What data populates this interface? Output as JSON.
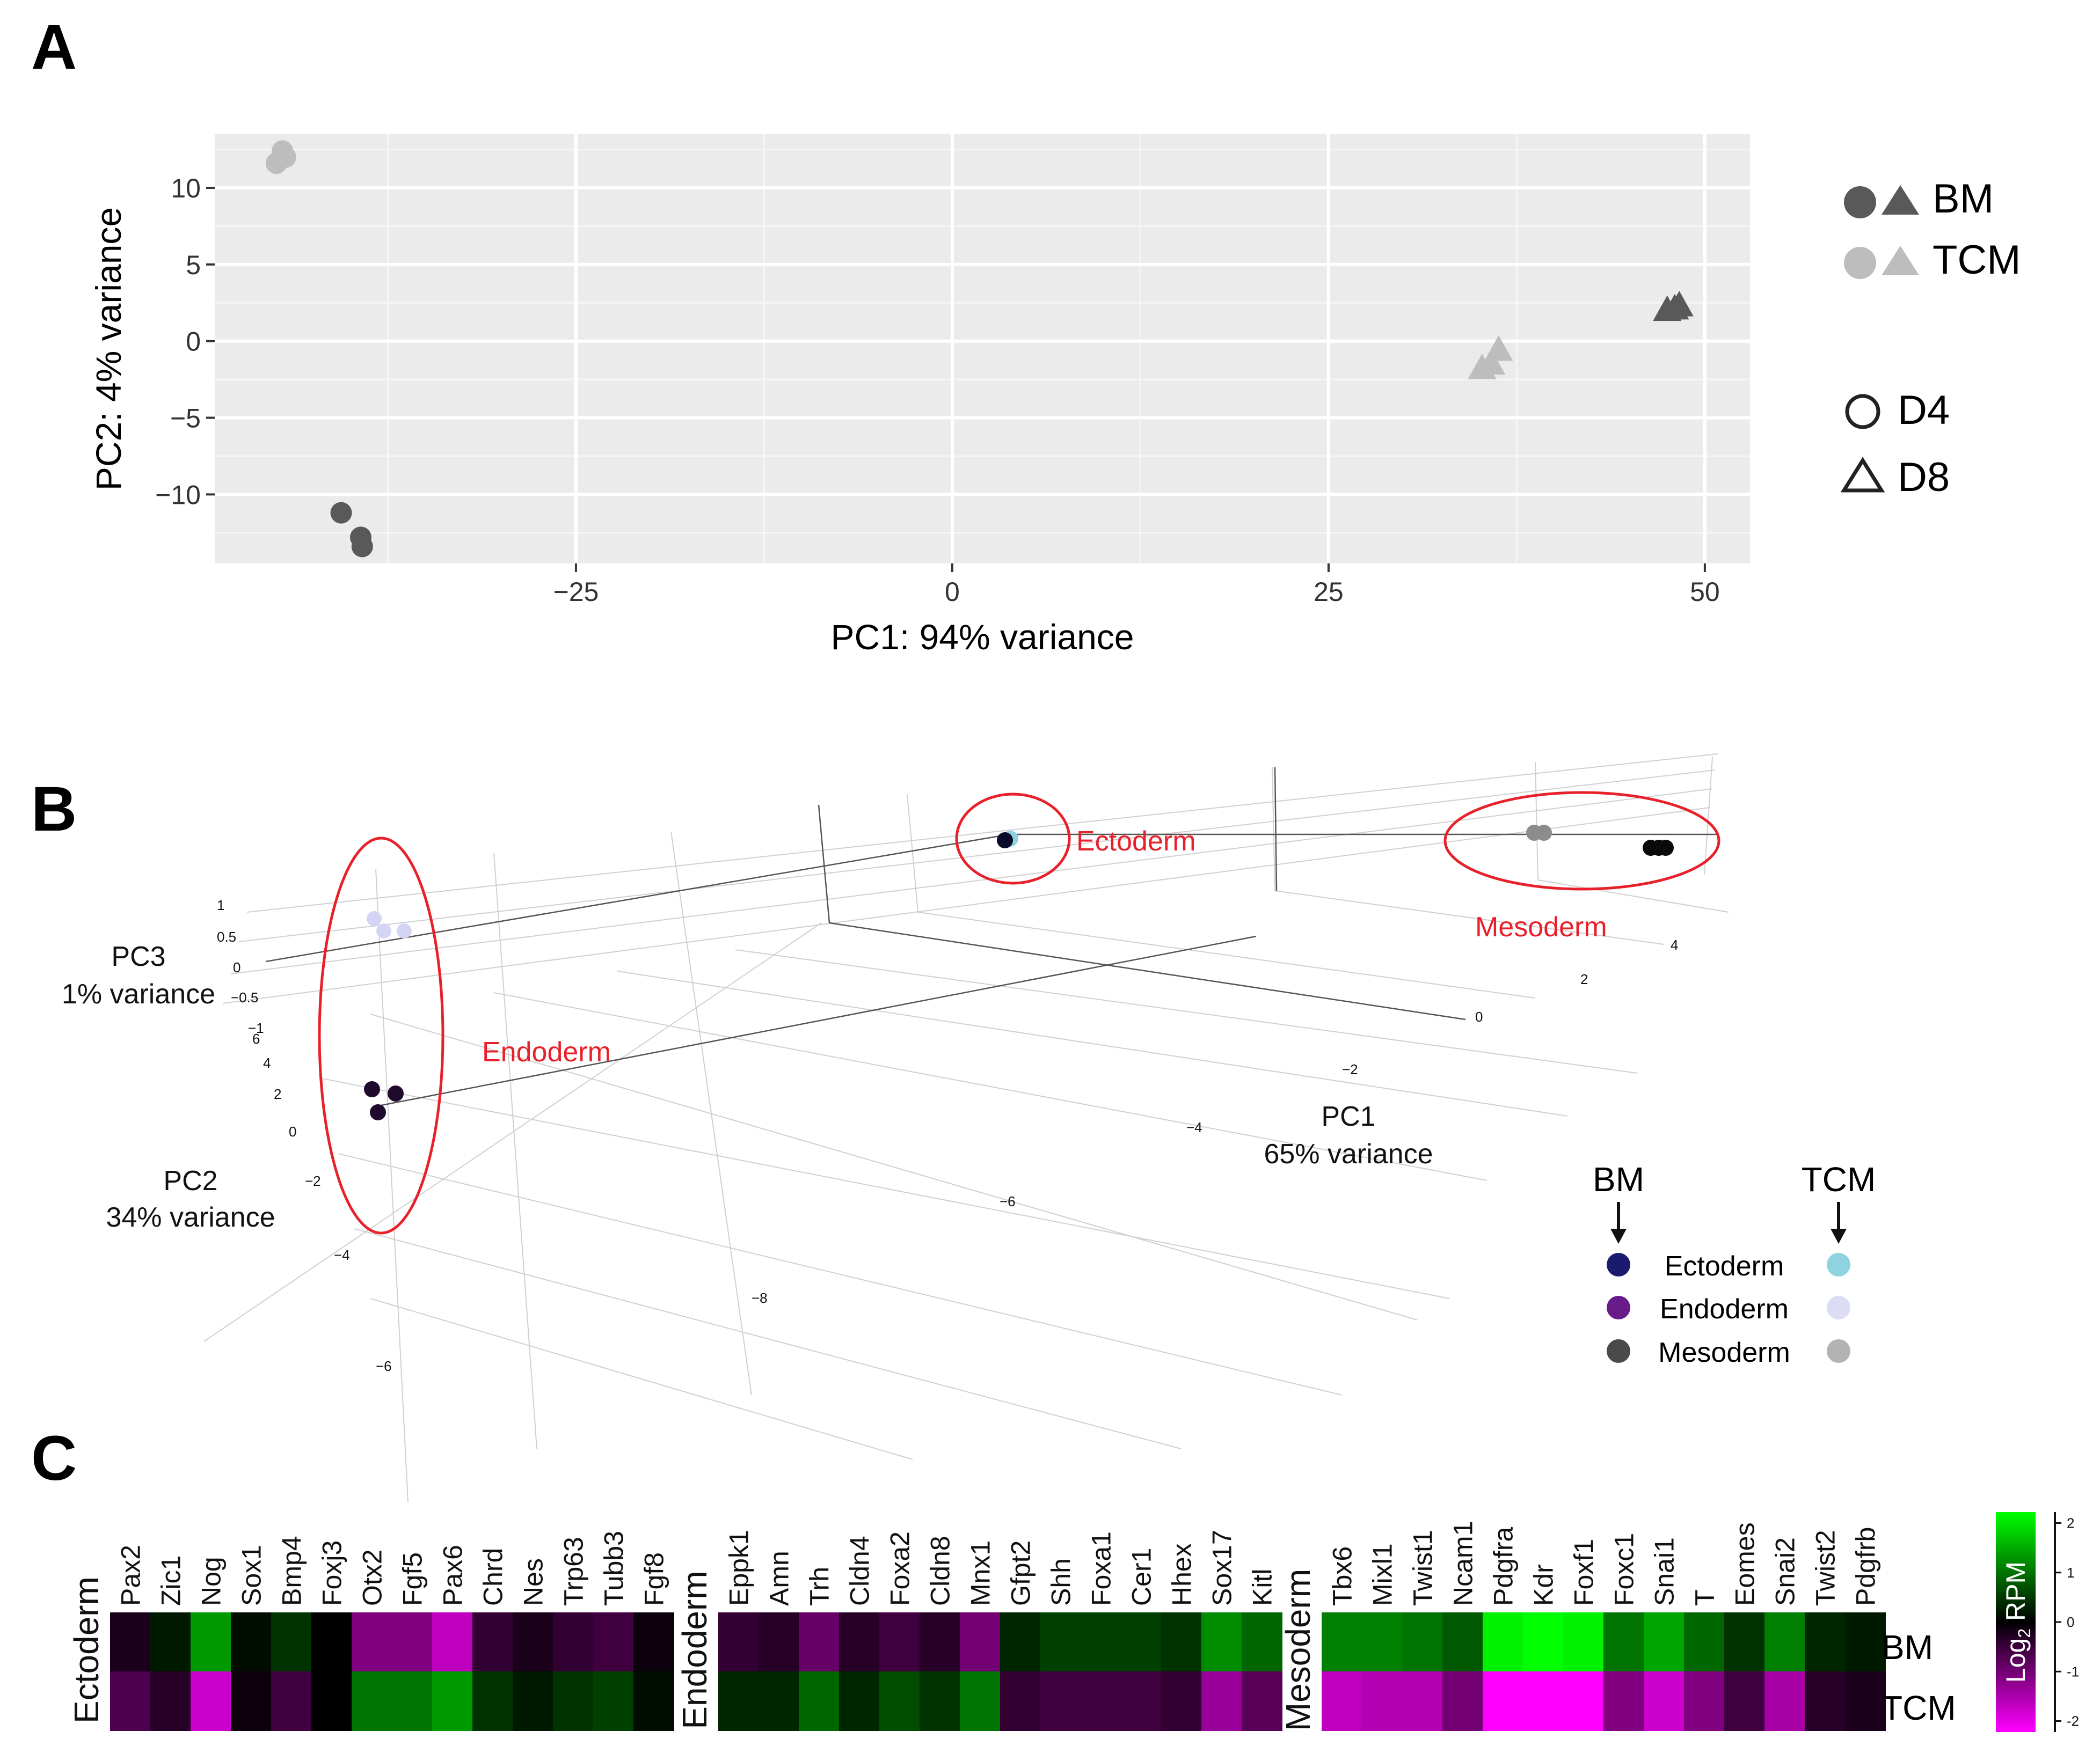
{
  "panel_labels": [
    "A",
    "B",
    "C"
  ],
  "chart_data": [
    {
      "panel": "A",
      "type": "scatter",
      "title": "",
      "xlabel": "PC1: 94% variance",
      "ylabel": "PC2: 4% variance",
      "xlim": [
        -49,
        53
      ],
      "ylim": [
        -14.5,
        13.5
      ],
      "xticks": [
        "−25",
        "0",
        "25",
        "50"
      ],
      "xtick_values": [
        -25,
        0,
        25,
        50
      ],
      "yticks": [
        "10",
        "5",
        "0",
        "−5",
        "−10"
      ],
      "ytick_values": [
        10,
        5,
        0,
        -5,
        -10
      ],
      "grid": true,
      "legend_position": "right",
      "legend_color": [
        {
          "label": "BM",
          "color": "#595959"
        },
        {
          "label": "TCM",
          "color": "#bdbdbd"
        }
      ],
      "legend_shape": [
        {
          "label": "D4",
          "shape": "circle"
        },
        {
          "label": "D8",
          "shape": "triangle"
        }
      ],
      "series": [
        {
          "group": "TCM",
          "day": "D4",
          "color": "#bdbdbd",
          "shape": "circle",
          "points": [
            [
              -44.5,
              12.4
            ],
            [
              -44.3,
              12.0
            ],
            [
              -44.9,
              11.6
            ]
          ]
        },
        {
          "group": "BM",
          "day": "D4",
          "color": "#595959",
          "shape": "circle",
          "points": [
            [
              -40.6,
              -11.2
            ],
            [
              -39.3,
              -12.8
            ],
            [
              -39.2,
              -13.4
            ]
          ]
        },
        {
          "group": "TCM",
          "day": "D8",
          "color": "#bdbdbd",
          "shape": "triangle",
          "points": [
            [
              35.2,
              -1.8
            ],
            [
              35.8,
              -1.5
            ],
            [
              36.3,
              -0.6
            ]
          ]
        },
        {
          "group": "BM",
          "day": "D8",
          "color": "#595959",
          "shape": "triangle",
          "points": [
            [
              47.5,
              2.0
            ],
            [
              48.3,
              2.3
            ],
            [
              48.0,
              2.1
            ]
          ]
        }
      ]
    },
    {
      "panel": "B",
      "type": "scatter",
      "title": "",
      "axes": [
        {
          "label": "PC1",
          "sublabel": "65% variance",
          "ticks": [
            "4",
            "2",
            "0",
            "−2",
            "−4",
            "−6",
            "−8"
          ]
        },
        {
          "label": "PC2",
          "sublabel": "34% variance",
          "ticks": [
            "6",
            "4",
            "2",
            "0",
            "−2",
            "−4",
            "−6"
          ]
        },
        {
          "label": "PC3",
          "sublabel": "1% variance",
          "ticks": [
            "1",
            "0.5",
            "0",
            "−0.5",
            "−1"
          ]
        }
      ],
      "clusters": [
        {
          "label": "Ectoderm",
          "label_color": "#e8202a"
        },
        {
          "label": "Endoderm",
          "label_color": "#e8202a"
        },
        {
          "label": "Mesoderm",
          "label_color": "#e8202a"
        }
      ],
      "legend": {
        "headers": [
          "BM",
          "TCM"
        ],
        "rows": [
          {
            "label": "Ectoderm",
            "bm_color": "#1a1a6e",
            "tcm_color": "#8fd3e0"
          },
          {
            "label": "Endoderm",
            "bm_color": "#6a1b8a",
            "tcm_color": "#dcdcf5"
          },
          {
            "label": "Mesoderm",
            "bm_color": "#4a4a4a",
            "tcm_color": "#b3b3b3"
          }
        ]
      },
      "groups": [
        {
          "cluster": "Ectoderm",
          "source": "BM",
          "color": "#0a0a2a",
          "n": 1
        },
        {
          "cluster": "Ectoderm",
          "source": "TCM",
          "color": "#8fd3e0",
          "n": 1
        },
        {
          "cluster": "Endoderm",
          "source": "BM",
          "color": "#1f0a2e",
          "n": 3
        },
        {
          "cluster": "Endoderm",
          "source": "TCM",
          "color": "#d4d4f4",
          "n": 3
        },
        {
          "cluster": "Mesoderm",
          "source": "BM",
          "color": "#0a0a0a",
          "n": 3
        },
        {
          "cluster": "Mesoderm",
          "source": "TCM",
          "color": "#8c8c8c",
          "n": 2
        }
      ]
    },
    {
      "panel": "C",
      "type": "heatmap",
      "title": "",
      "rows": [
        "BM",
        "TCM"
      ],
      "colorbar": {
        "label": "Log2 RPM",
        "ticks": [
          "2",
          "1",
          "0",
          "-1",
          "-2"
        ],
        "range": [
          -2,
          2
        ],
        "low_color": "#ff00ff",
        "mid_color": "#000000",
        "high_color": "#00ff00"
      },
      "groups": [
        {
          "name": "Ectoderm",
          "genes": [
            "Pax2",
            "Zic1",
            "Nog",
            "Sox1",
            "Bmp4",
            "Foxj3",
            "Otx2",
            "Fgf5",
            "Pax6",
            "Chrd",
            "Nes",
            "Trp63",
            "Tubb3",
            "Fgf8"
          ],
          "BM": [
            -0.2,
            0.2,
            1.2,
            0.1,
            0.4,
            0.0,
            -1.0,
            -1.0,
            -1.5,
            -0.4,
            -0.2,
            -0.4,
            -0.5,
            -0.1
          ],
          "TCM": [
            -0.6,
            -0.3,
            -1.6,
            -0.1,
            -0.5,
            0.0,
            0.9,
            0.9,
            1.2,
            0.4,
            0.2,
            0.4,
            0.5,
            0.1
          ]
        },
        {
          "name": "Endoderm",
          "genes": [
            "Eppk1",
            "Amn",
            "Trh",
            "Cldn4",
            "Foxa2",
            "Cldn8",
            "Mnx1",
            "Gfpt2",
            "Shh",
            "Foxa1",
            "Cer1",
            "Hhex",
            "Sox17",
            "Kitl"
          ],
          "BM": [
            -0.4,
            -0.3,
            -0.8,
            -0.3,
            -0.5,
            -0.3,
            -0.9,
            0.3,
            0.5,
            0.5,
            0.5,
            0.4,
            1.1,
            0.8
          ],
          "TCM": [
            0.3,
            0.3,
            0.8,
            0.3,
            0.6,
            0.4,
            0.9,
            -0.4,
            -0.5,
            -0.5,
            -0.5,
            -0.4,
            -1.2,
            -0.7
          ]
        },
        {
          "name": "Mesoderm",
          "genes": [
            "Tbx6",
            "Mixl1",
            "Twist1",
            "Ncam1",
            "Pdgfra",
            "Kdr",
            "Foxf1",
            "Foxc1",
            "Snai1",
            "T",
            "Eomes",
            "Snai2",
            "Twist2",
            "Pdgfrb"
          ],
          "BM": [
            1.0,
            1.0,
            0.9,
            0.7,
            1.9,
            2.0,
            1.9,
            0.9,
            1.3,
            0.8,
            0.4,
            1.0,
            0.3,
            0.2
          ],
          "TCM": [
            -1.5,
            -1.4,
            -1.4,
            -0.9,
            -2.0,
            -2.0,
            -2.0,
            -1.0,
            -1.6,
            -1.0,
            -0.5,
            -1.3,
            -0.3,
            -0.2
          ]
        }
      ]
    }
  ]
}
